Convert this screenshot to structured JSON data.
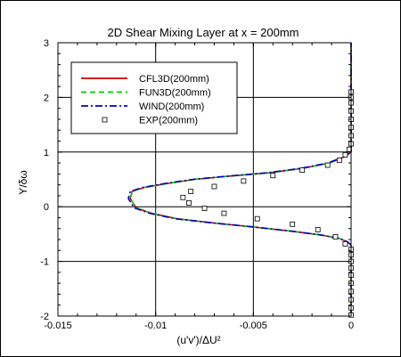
{
  "chart_data": {
    "type": "line",
    "title": "2D Shear Mixing Layer at x = 200mm",
    "xlabel": "(u'v')/ΔU²",
    "ylabel": "Y/δω",
    "xlim": [
      -0.015,
      0
    ],
    "ylim": [
      -2,
      3
    ],
    "x_ticks": [
      -0.015,
      -0.01,
      -0.005,
      0
    ],
    "x_tick_labels": [
      "-0.015",
      "-0.01",
      "-0.005",
      "0"
    ],
    "y_ticks": [
      -2,
      -1,
      0,
      1,
      2,
      3
    ],
    "y_tick_labels": [
      "-2",
      "-1",
      "0",
      "1",
      "2",
      "3"
    ],
    "grid": true,
    "legend_position": "top-left",
    "series": [
      {
        "name": "CFL3D(200mm)",
        "style": "solid",
        "color": "#cc0000",
        "x": [
          0,
          0,
          0,
          0,
          -0.0002,
          -0.0006,
          -0.0015,
          -0.003,
          -0.005,
          -0.007,
          -0.0089,
          -0.0102,
          -0.011,
          -0.0113,
          -0.0112,
          -0.0106,
          -0.0095,
          -0.008,
          -0.0062,
          -0.0042,
          -0.0025,
          -0.0011,
          -0.0003,
          0,
          0,
          0
        ],
        "y": [
          -2,
          -1.5,
          -1,
          -0.7,
          -0.64,
          -0.58,
          -0.52,
          -0.45,
          -0.37,
          -0.3,
          -0.22,
          -0.12,
          -0.02,
          0.15,
          0.28,
          0.35,
          0.42,
          0.5,
          0.56,
          0.62,
          0.7,
          0.8,
          0.92,
          1.0,
          2.0,
          3.0
        ]
      },
      {
        "name": "FUN3D(200mm)",
        "style": "dashed",
        "color": "#00cc00",
        "x": [
          0,
          0,
          0,
          0,
          -0.0002,
          -0.0006,
          -0.0015,
          -0.003,
          -0.005,
          -0.007,
          -0.0089,
          -0.0102,
          -0.011,
          -0.0113,
          -0.0112,
          -0.0106,
          -0.0095,
          -0.008,
          -0.0062,
          -0.0042,
          -0.0025,
          -0.0011,
          -0.0003,
          0,
          0,
          0
        ],
        "y": [
          -2,
          -1.5,
          -1,
          -0.7,
          -0.64,
          -0.58,
          -0.52,
          -0.45,
          -0.37,
          -0.3,
          -0.22,
          -0.12,
          -0.02,
          0.15,
          0.28,
          0.35,
          0.42,
          0.5,
          0.56,
          0.62,
          0.7,
          0.8,
          0.92,
          1.0,
          2.0,
          3.0
        ]
      },
      {
        "name": "WIND(200mm)",
        "style": "dashdot",
        "color": "#0000cc",
        "x": [
          0,
          0,
          0,
          0,
          -0.0002,
          -0.0006,
          -0.0015,
          -0.003,
          -0.005,
          -0.007,
          -0.009,
          -0.0103,
          -0.0111,
          -0.0114,
          -0.0113,
          -0.0107,
          -0.0096,
          -0.0081,
          -0.0063,
          -0.0043,
          -0.0026,
          -0.0012,
          -0.0003,
          0,
          0,
          0
        ],
        "y": [
          -2,
          -1.5,
          -1,
          -0.7,
          -0.64,
          -0.58,
          -0.52,
          -0.45,
          -0.37,
          -0.3,
          -0.22,
          -0.12,
          -0.02,
          0.15,
          0.28,
          0.35,
          0.42,
          0.5,
          0.56,
          0.62,
          0.7,
          0.8,
          0.92,
          1.0,
          2.0,
          3.0
        ]
      },
      {
        "name": "EXP(200mm)",
        "style": "markers",
        "color": "#000000",
        "x": [
          0,
          0,
          0,
          0,
          0,
          0,
          0,
          0,
          0,
          0,
          -0.0003,
          -0.0008,
          -0.0017,
          -0.003,
          -0.0048,
          -0.0065,
          -0.0075,
          -0.0083,
          -0.0086,
          -0.0082,
          -0.007,
          -0.0055,
          -0.004,
          -0.0025,
          -0.0012,
          -0.0006,
          -0.0003,
          -0.0001,
          0,
          0,
          0,
          0,
          0,
          0,
          0,
          0
        ],
        "y": [
          -1.98,
          -1.85,
          -1.7,
          -1.55,
          -1.4,
          -1.25,
          -1.12,
          -1.0,
          -0.88,
          -0.78,
          -0.68,
          -0.55,
          -0.42,
          -0.32,
          -0.22,
          -0.12,
          -0.03,
          0.07,
          0.17,
          0.28,
          0.37,
          0.47,
          0.57,
          0.67,
          0.76,
          0.85,
          0.95,
          1.05,
          1.15,
          1.3,
          1.45,
          1.6,
          1.75,
          1.9,
          2.0,
          2.1
        ]
      }
    ]
  }
}
